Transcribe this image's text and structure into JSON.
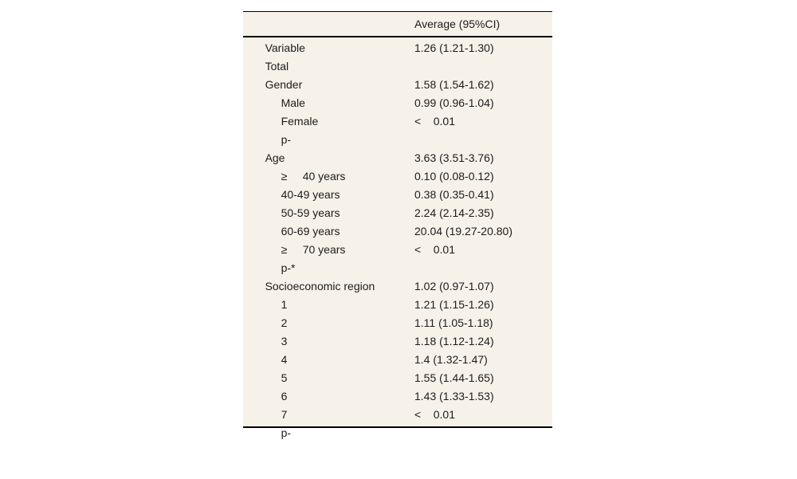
{
  "colors": {
    "table_bg": "#f6f2e9",
    "rule": "#000000",
    "text": "#1c1c1c",
    "page_bg": "#ffffff"
  },
  "table": {
    "columns": [
      "Variable",
      "Average (95%CI)"
    ],
    "rows": [
      {
        "label": "Total",
        "indent": 0,
        "value": "1.26 (1.21-1.30)"
      },
      {
        "label": "Gender",
        "indent": 0,
        "value": ""
      },
      {
        "label": "Male",
        "indent": 1,
        "value": "1.58 (1.54-1.62)"
      },
      {
        "label": "Female",
        "indent": 1,
        "value": "0.99 (0.96-1.04)"
      },
      {
        "label": "p-",
        "indent": 1,
        "value": "<    0.01"
      },
      {
        "label": "Age",
        "indent": 0,
        "value": ""
      },
      {
        "label": "≥     40 years",
        "indent": 1,
        "value": "3.63 (3.51-3.76)"
      },
      {
        "label": "40-49 years",
        "indent": 1,
        "value": "0.10 (0.08-0.12)"
      },
      {
        "label": "50-59 years",
        "indent": 1,
        "value": "0.38 (0.35-0.41)"
      },
      {
        "label": "60-69 years",
        "indent": 1,
        "value": "2.24 (2.14-2.35)"
      },
      {
        "label": "≥     70 years",
        "indent": 1,
        "value": "20.04 (19.27-20.80)"
      },
      {
        "label": "p-*",
        "indent": 1,
        "value": "<    0.01"
      },
      {
        "label": "Socioeconomic region",
        "indent": 0,
        "value": ""
      },
      {
        "label": "1",
        "indent": 1,
        "value": "1.02 (0.97-1.07)"
      },
      {
        "label": "2",
        "indent": 1,
        "value": "1.21 (1.15-1.26)"
      },
      {
        "label": "3",
        "indent": 1,
        "value": "1.11 (1.05-1.18)"
      },
      {
        "label": "4",
        "indent": 1,
        "value": "1.18 (1.12-1.24)"
      },
      {
        "label": "5",
        "indent": 1,
        "value": "1.4 (1.32-1.47)"
      },
      {
        "label": "6",
        "indent": 1,
        "value": "1.55 (1.44-1.65)"
      },
      {
        "label": "7",
        "indent": 1,
        "value": "1.43 (1.33-1.53)"
      },
      {
        "label": "p-",
        "indent": 1,
        "value": "<    0.01"
      }
    ]
  }
}
